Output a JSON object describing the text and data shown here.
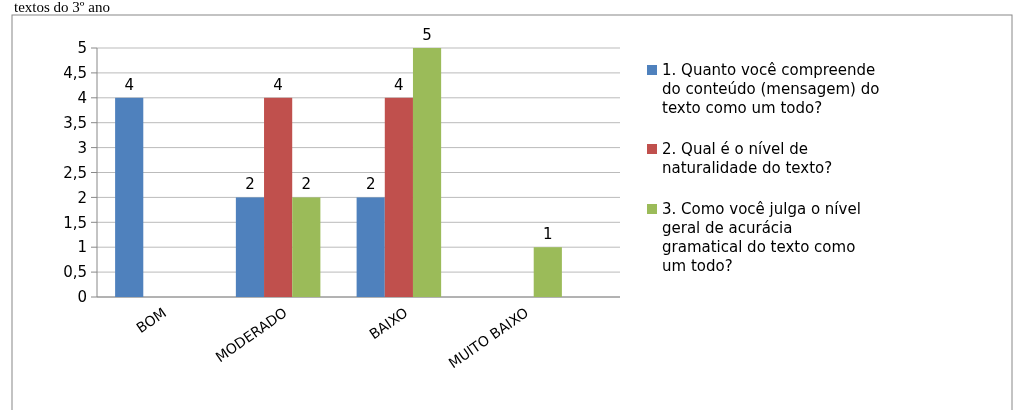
{
  "chart_data": {
    "type": "bar",
    "annotations": [
      "textos do 3º ano"
    ],
    "categories": [
      "BOM",
      "MODERADO",
      "BAIXO",
      "MUITO BAIXO"
    ],
    "series": [
      {
        "name": "1. Quanto você compreende do conteúdo (mensagem) do texto como um todo?",
        "color": "#4f81bd",
        "values": [
          4,
          2,
          2,
          null
        ],
        "value_labels": [
          "4",
          "2",
          "2",
          null
        ]
      },
      {
        "name": "2. Qual é o nível de naturalidade do texto?",
        "color": "#c0504d",
        "values": [
          null,
          4,
          4,
          null
        ],
        "value_labels": [
          null,
          "4",
          "4",
          null
        ]
      },
      {
        "name": "3. Como você julga o nível geral de acurácia gramatical do texto como um todo?",
        "color": "#9bbb59",
        "values": [
          null,
          2,
          5,
          1
        ],
        "value_labels": [
          null,
          "2",
          "5",
          "1"
        ]
      }
    ],
    "ylim": [
      0,
      5
    ],
    "yticks": [
      0,
      {
        "value": 0.5,
        "label": "0,5"
      },
      1,
      {
        "value": 1.5,
        "label": "1,5"
      },
      2,
      {
        "value": 2.5,
        "label": "2,5"
      },
      3,
      {
        "value": 3.5,
        "label": "3,5"
      },
      4,
      {
        "value": 4.5,
        "label": "4,5"
      },
      5
    ],
    "grid": "y",
    "legend": "right"
  }
}
